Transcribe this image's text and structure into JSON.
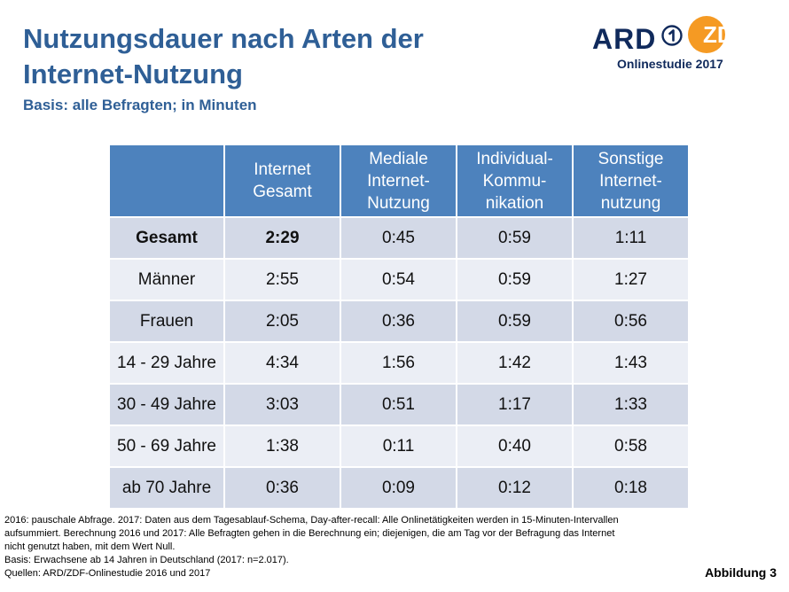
{
  "title": {
    "line1": "Nutzungsdauer nach Arten der",
    "line2": "Internet-Nutzung",
    "subtitle": "Basis: alle Befragten; in Minuten"
  },
  "logo": {
    "ard": "ARD",
    "zdf": "ZDF",
    "caption": "Onlinestudie 2017"
  },
  "table": {
    "headers": [
      "",
      "Internet Gesamt",
      "Mediale Internet-Nutzung",
      "Individual-Kommu-nikation",
      "Sonstige Internet-nutzung"
    ],
    "header_lines": [
      [],
      [
        "Internet",
        "Gesamt"
      ],
      [
        "Mediale",
        "Internet-",
        "Nutzung"
      ],
      [
        "Individual-",
        "Kommu-",
        "nikation"
      ],
      [
        "Sonstige",
        "Internet-",
        "nutzung"
      ]
    ],
    "rows": [
      {
        "label": "Gesamt",
        "values": [
          "2:29",
          "0:45",
          "0:59",
          "1:11"
        ]
      },
      {
        "label": "Männer",
        "values": [
          "2:55",
          "0:54",
          "0:59",
          "1:27"
        ]
      },
      {
        "label": "Frauen",
        "values": [
          "2:05",
          "0:36",
          "0:59",
          "0:56"
        ]
      },
      {
        "label": "14 - 29 Jahre",
        "values": [
          "4:34",
          "1:56",
          "1:42",
          "1:43"
        ]
      },
      {
        "label": "30 - 49 Jahre",
        "values": [
          "3:03",
          "0:51",
          "1:17",
          "1:33"
        ]
      },
      {
        "label": "50 - 69 Jahre",
        "values": [
          "1:38",
          "0:11",
          "0:40",
          "0:58"
        ]
      },
      {
        "label": "ab 70 Jahre",
        "values": [
          "0:36",
          "0:09",
          "0:12",
          "0:18"
        ]
      }
    ]
  },
  "footnote": {
    "line1": "2016: pauschale Abfrage. 2017: Daten aus dem Tagesablauf-Schema, Day-after-recall: Alle Onlinetätigkeiten werden in 15-Minuten-Intervallen",
    "line2": "aufsummiert. Berechnung 2016 und 2017: Alle Befragten gehen in die Berechnung ein; diejenigen, die am Tag vor der Befragung das Internet",
    "line3": "nicht genutzt haben, mit dem Wert Null.",
    "line4": "Basis: Erwachsene ab 14 Jahren in Deutschland (2017: n=2.017).",
    "line5": "Quellen: ARD/ZDF-Onlinestudie 2016 und 2017"
  },
  "figure_label": "Abbildung 3",
  "colors": {
    "title": "#2f5f96",
    "header_bg": "#4d82bd",
    "row_dark": "#d3d9e7",
    "row_light": "#ebeef5",
    "zdf_orange": "#f59a23",
    "ard_navy": "#102a5c"
  }
}
